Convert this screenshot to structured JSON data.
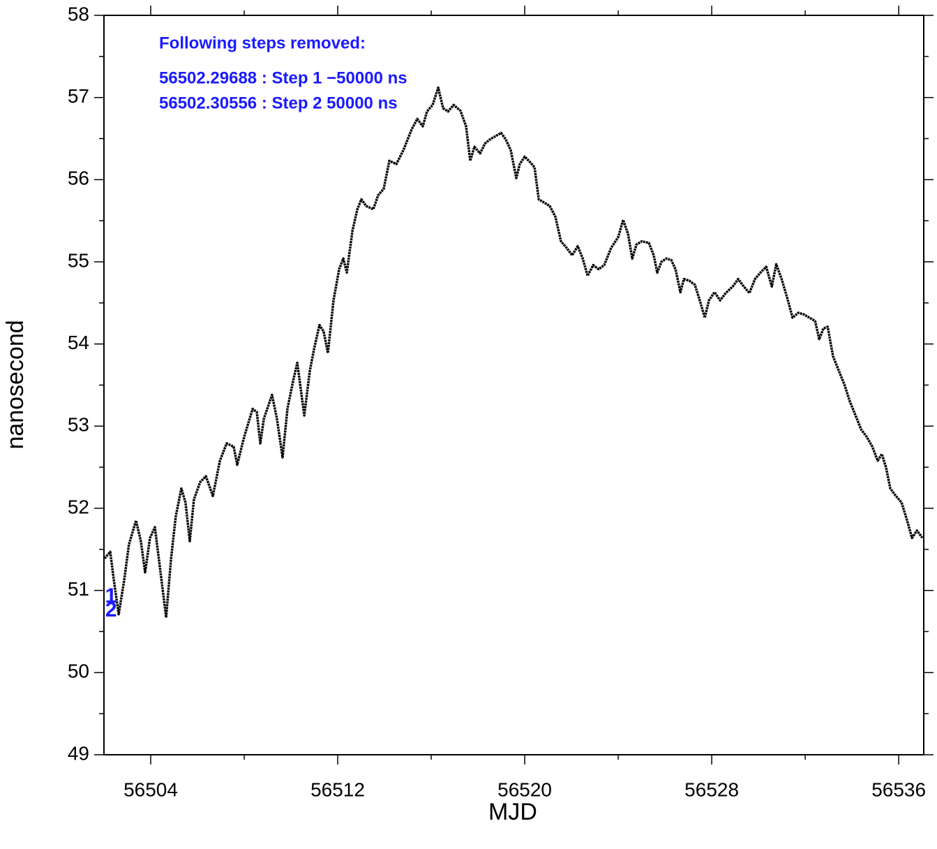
{
  "chart_data": {
    "type": "line",
    "x_label": "MJD",
    "y_label": "nanosecond",
    "xlim": [
      56502.0,
      56537.07
    ],
    "ylim": [
      49,
      58
    ],
    "xticks": [
      56504,
      56512,
      56520,
      56528,
      56536
    ],
    "xticks_minor": [
      56508,
      56516,
      56524,
      56532
    ],
    "yticks": [
      49,
      50,
      51,
      52,
      53,
      54,
      55,
      56,
      57,
      58
    ],
    "yticks_minor": [
      49.5,
      50.5,
      51.5,
      52.5,
      53.5,
      54.5,
      55.5,
      56.5,
      57.5
    ],
    "annotations": {
      "heading": "Following steps removed:",
      "lines": [
        "56502.29688 : Step 1 −50000 ns",
        "56502.30556 : Step 2 50000 ns"
      ],
      "markers": [
        {
          "label": "1",
          "x": 56502.29688,
          "y": 50.92
        },
        {
          "label": "2",
          "x": 56502.30556,
          "y": 50.75
        }
      ],
      "color": "#1a1aff"
    },
    "series": [
      {
        "color": "#000000",
        "x": [
          56502.03,
          56502.27,
          56502.42,
          56502.63,
          56502.87,
          56503.07,
          56503.37,
          56503.58,
          56503.76,
          56503.97,
          56504.18,
          56504.42,
          56504.66,
          56504.87,
          56505.07,
          56505.31,
          56505.49,
          56505.67,
          56505.85,
          56506.12,
          56506.36,
          56506.66,
          56506.96,
          56507.25,
          56507.55,
          56507.7,
          56508.0,
          56508.36,
          56508.54,
          56508.69,
          56508.84,
          56509.19,
          56509.4,
          56509.64,
          56509.85,
          56510.09,
          56510.27,
          56510.57,
          56510.81,
          56510.99,
          56511.22,
          56511.4,
          56511.58,
          56511.82,
          56512.06,
          56512.24,
          56512.39,
          56512.63,
          56512.84,
          56513.01,
          56513.22,
          56513.52,
          56513.73,
          56513.97,
          56514.21,
          56514.51,
          56514.81,
          56515.16,
          56515.4,
          56515.64,
          56515.82,
          56516.06,
          56516.3,
          56516.51,
          56516.72,
          56516.96,
          56517.25,
          56517.49,
          56517.67,
          56517.85,
          56518.09,
          56518.3,
          56518.51,
          56518.75,
          56518.99,
          56519.19,
          56519.4,
          56519.64,
          56519.79,
          56520.0,
          56520.24,
          56520.42,
          56520.6,
          56520.84,
          56521.07,
          56521.31,
          56521.55,
          56521.79,
          56522.03,
          56522.27,
          56522.48,
          56522.69,
          56522.93,
          56523.16,
          56523.4,
          56523.7,
          56524.0,
          56524.21,
          56524.42,
          56524.6,
          56524.78,
          56525.01,
          56525.31,
          56525.52,
          56525.67,
          56525.85,
          56526.06,
          56526.27,
          56526.45,
          56526.66,
          56526.81,
          56527.04,
          56527.28,
          56527.49,
          56527.7,
          56527.88,
          56528.12,
          56528.36,
          56528.6,
          56528.9,
          56529.13,
          56529.37,
          56529.61,
          56529.85,
          56530.09,
          56530.33,
          56530.57,
          56530.76,
          56530.99,
          56531.22,
          56531.46,
          56531.7,
          56531.94,
          56532.18,
          56532.42,
          56532.6,
          56532.78,
          56532.96,
          56533.19,
          56533.43,
          56533.67,
          56533.91,
          56534.15,
          56534.39,
          56534.63,
          56534.87,
          56535.1,
          56535.28,
          56535.46,
          56535.64,
          56535.88,
          56536.12,
          56536.36,
          56536.57,
          56536.78,
          56537.01
        ],
        "values": [
          51.39,
          51.47,
          51.13,
          50.71,
          51.13,
          51.56,
          51.85,
          51.6,
          51.22,
          51.64,
          51.77,
          51.22,
          50.67,
          51.39,
          51.9,
          52.24,
          52.07,
          51.6,
          52.11,
          52.32,
          52.39,
          52.15,
          52.58,
          52.79,
          52.75,
          52.53,
          52.87,
          53.21,
          53.17,
          52.79,
          53.09,
          53.38,
          53.09,
          52.62,
          53.21,
          53.55,
          53.77,
          53.13,
          53.68,
          53.94,
          54.23,
          54.15,
          53.89,
          54.53,
          54.91,
          55.04,
          54.87,
          55.38,
          55.64,
          55.76,
          55.68,
          55.64,
          55.81,
          55.89,
          56.23,
          56.19,
          56.36,
          56.61,
          56.74,
          56.65,
          56.83,
          56.91,
          57.12,
          56.87,
          56.83,
          56.91,
          56.84,
          56.65,
          56.23,
          56.4,
          56.32,
          56.44,
          56.49,
          56.53,
          56.57,
          56.49,
          56.36,
          56.02,
          56.19,
          56.28,
          56.21,
          56.15,
          55.76,
          55.72,
          55.68,
          55.55,
          55.25,
          55.17,
          55.08,
          55.19,
          55.04,
          54.83,
          54.96,
          54.91,
          54.96,
          55.17,
          55.3,
          55.51,
          55.34,
          55.04,
          55.21,
          55.25,
          55.23,
          55.08,
          54.87,
          55.0,
          55.04,
          55.02,
          54.91,
          54.63,
          54.79,
          54.77,
          54.72,
          54.53,
          54.32,
          54.53,
          54.63,
          54.53,
          54.62,
          54.7,
          54.79,
          54.7,
          54.62,
          54.79,
          54.87,
          54.94,
          54.7,
          54.97,
          54.79,
          54.57,
          54.32,
          54.38,
          54.36,
          54.32,
          54.28,
          54.06,
          54.19,
          54.21,
          53.85,
          53.68,
          53.51,
          53.3,
          53.13,
          52.96,
          52.87,
          52.75,
          52.58,
          52.66,
          52.49,
          52.24,
          52.15,
          52.07,
          51.85,
          51.64,
          51.73,
          51.64
        ]
      }
    ]
  }
}
